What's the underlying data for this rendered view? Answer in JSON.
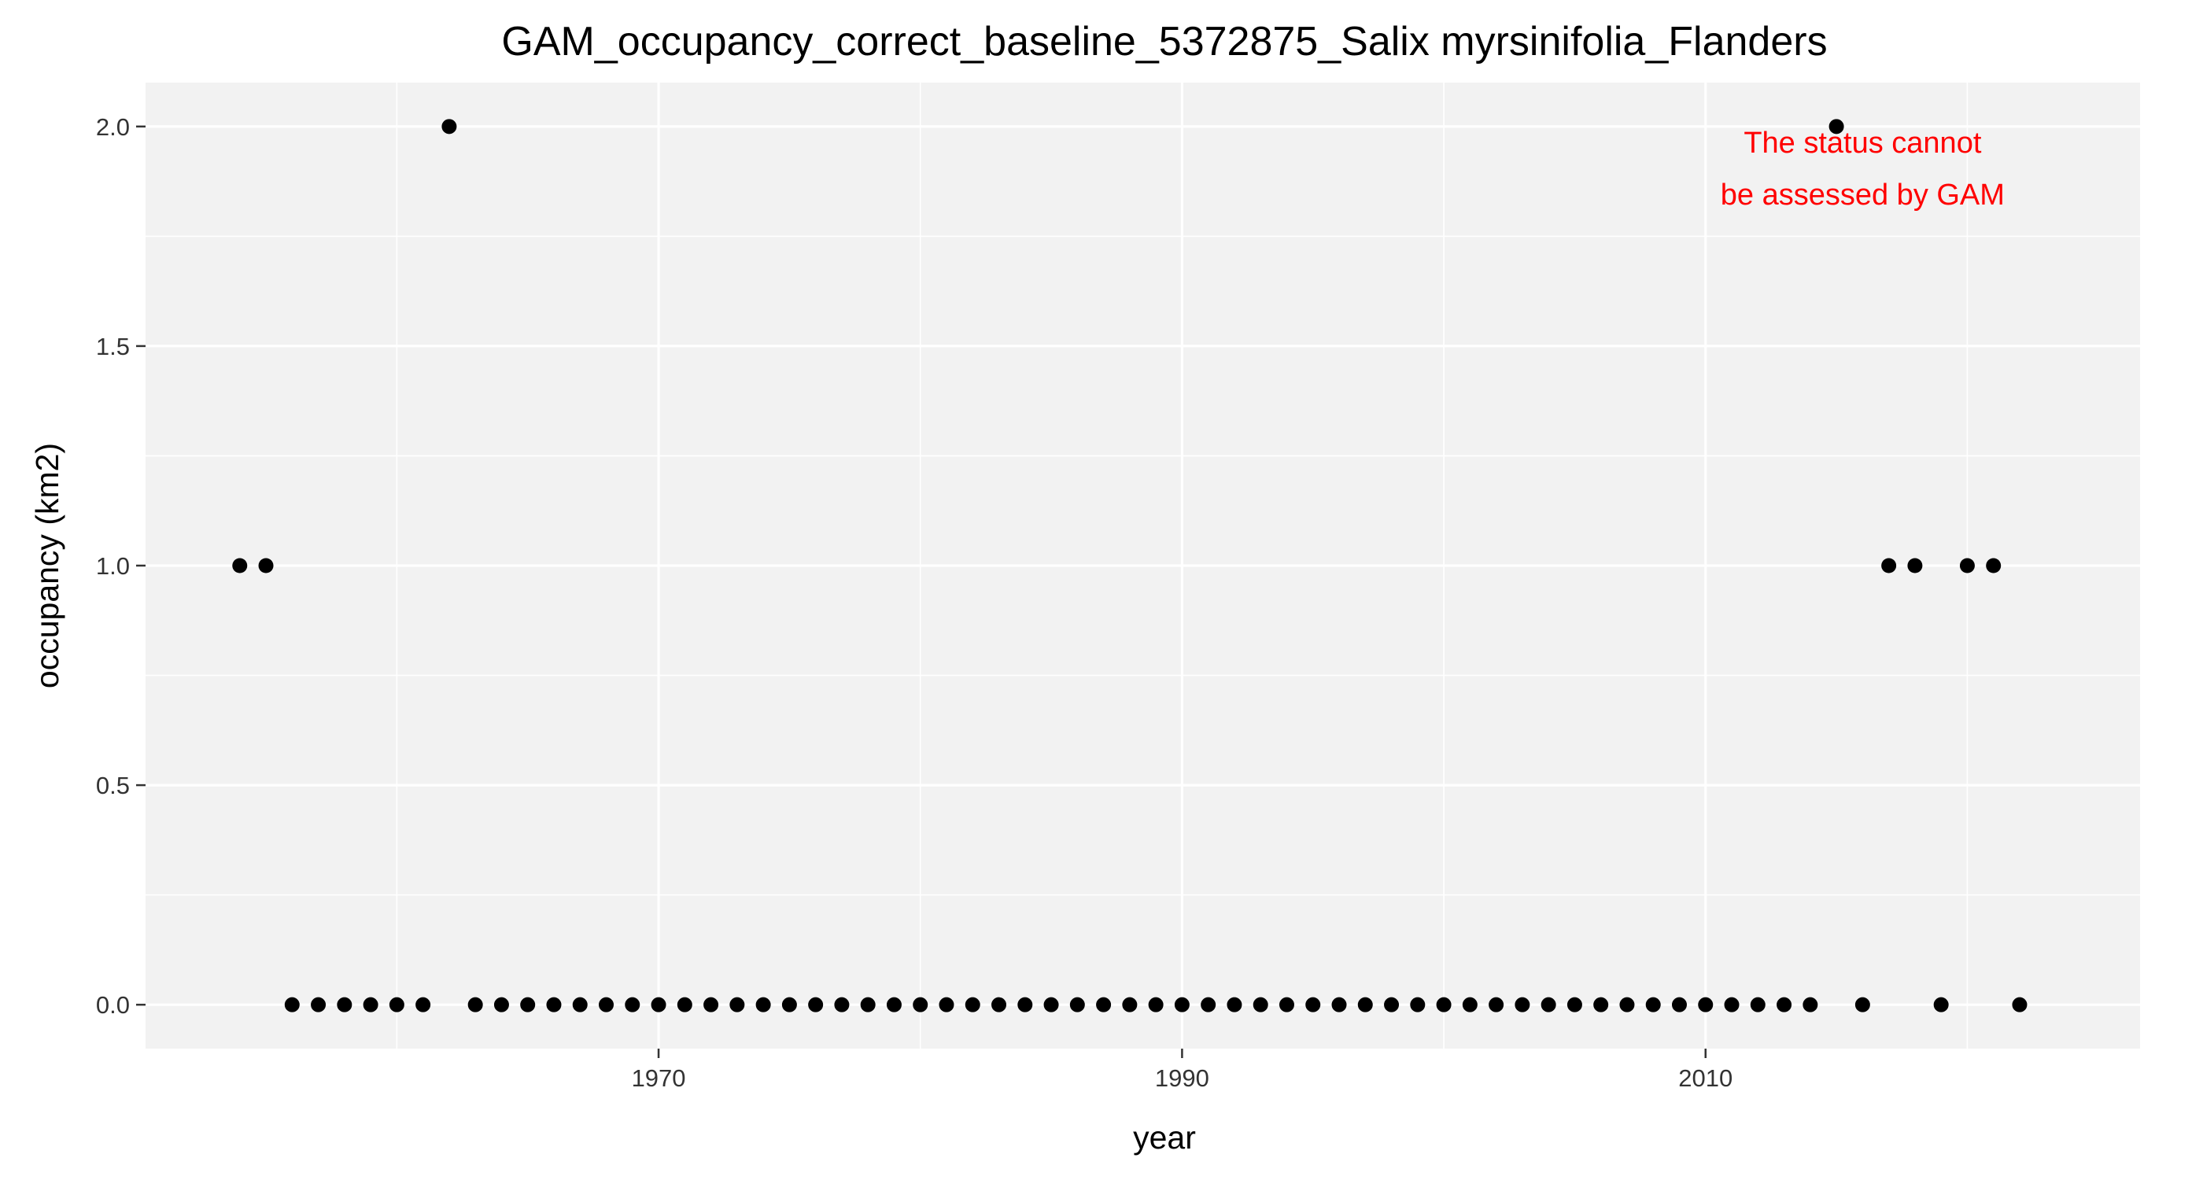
{
  "chart_data": {
    "type": "scatter",
    "title": "GAM_occupancy_correct_baseline_5372875_Salix myrsinifolia_Flanders",
    "xlabel": "year",
    "ylabel": "occupancy (km2)",
    "xlim": [
      1950.4,
      2026.6
    ],
    "ylim": [
      -0.1,
      2.1
    ],
    "x_ticks": [
      1970,
      1990,
      2010
    ],
    "x_tick_labels": [
      "1970",
      "1990",
      "2010"
    ],
    "y_ticks": [
      0,
      0.5,
      1,
      1.5,
      2
    ],
    "y_tick_labels": [
      "0.0",
      "0.5",
      "1.0",
      "1.5",
      "2.0"
    ],
    "grid": true,
    "point_color": "#000000",
    "panel_color": "#f2f2f2",
    "grid_color": "#ffffff",
    "annotation": {
      "lines": [
        "The status cannot",
        "be assessed by GAM"
      ],
      "color": "#ff0000",
      "x": 2016,
      "y": 1.905
    },
    "points": [
      {
        "x": 1954,
        "y": 1
      },
      {
        "x": 1955,
        "y": 1
      },
      {
        "x": 1956,
        "y": 0
      },
      {
        "x": 1957,
        "y": 0
      },
      {
        "x": 1958,
        "y": 0
      },
      {
        "x": 1959,
        "y": 0
      },
      {
        "x": 1960,
        "y": 0
      },
      {
        "x": 1961,
        "y": 0
      },
      {
        "x": 1962,
        "y": 2
      },
      {
        "x": 1963,
        "y": 0
      },
      {
        "x": 1964,
        "y": 0
      },
      {
        "x": 1965,
        "y": 0
      },
      {
        "x": 1966,
        "y": 0
      },
      {
        "x": 1967,
        "y": 0
      },
      {
        "x": 1968,
        "y": 0
      },
      {
        "x": 1969,
        "y": 0
      },
      {
        "x": 1970,
        "y": 0
      },
      {
        "x": 1971,
        "y": 0
      },
      {
        "x": 1972,
        "y": 0
      },
      {
        "x": 1973,
        "y": 0
      },
      {
        "x": 1974,
        "y": 0
      },
      {
        "x": 1975,
        "y": 0
      },
      {
        "x": 1976,
        "y": 0
      },
      {
        "x": 1977,
        "y": 0
      },
      {
        "x": 1978,
        "y": 0
      },
      {
        "x": 1979,
        "y": 0
      },
      {
        "x": 1980,
        "y": 0
      },
      {
        "x": 1981,
        "y": 0
      },
      {
        "x": 1982,
        "y": 0
      },
      {
        "x": 1983,
        "y": 0
      },
      {
        "x": 1984,
        "y": 0
      },
      {
        "x": 1985,
        "y": 0
      },
      {
        "x": 1986,
        "y": 0
      },
      {
        "x": 1987,
        "y": 0
      },
      {
        "x": 1988,
        "y": 0
      },
      {
        "x": 1989,
        "y": 0
      },
      {
        "x": 1990,
        "y": 0
      },
      {
        "x": 1991,
        "y": 0
      },
      {
        "x": 1992,
        "y": 0
      },
      {
        "x": 1993,
        "y": 0
      },
      {
        "x": 1994,
        "y": 0
      },
      {
        "x": 1995,
        "y": 0
      },
      {
        "x": 1996,
        "y": 0
      },
      {
        "x": 1997,
        "y": 0
      },
      {
        "x": 1998,
        "y": 0
      },
      {
        "x": 1999,
        "y": 0
      },
      {
        "x": 2000,
        "y": 0
      },
      {
        "x": 2001,
        "y": 0
      },
      {
        "x": 2002,
        "y": 0
      },
      {
        "x": 2003,
        "y": 0
      },
      {
        "x": 2004,
        "y": 0
      },
      {
        "x": 2005,
        "y": 0
      },
      {
        "x": 2006,
        "y": 0
      },
      {
        "x": 2007,
        "y": 0
      },
      {
        "x": 2008,
        "y": 0
      },
      {
        "x": 2009,
        "y": 0
      },
      {
        "x": 2010,
        "y": 0
      },
      {
        "x": 2011,
        "y": 0
      },
      {
        "x": 2012,
        "y": 0
      },
      {
        "x": 2013,
        "y": 0
      },
      {
        "x": 2014,
        "y": 0
      },
      {
        "x": 2015,
        "y": 2
      },
      {
        "x": 2016,
        "y": 0
      },
      {
        "x": 2017,
        "y": 1
      },
      {
        "x": 2018,
        "y": 1
      },
      {
        "x": 2019,
        "y": 0
      },
      {
        "x": 2020,
        "y": 1
      },
      {
        "x": 2021,
        "y": 1
      },
      {
        "x": 2022,
        "y": 0
      }
    ]
  }
}
